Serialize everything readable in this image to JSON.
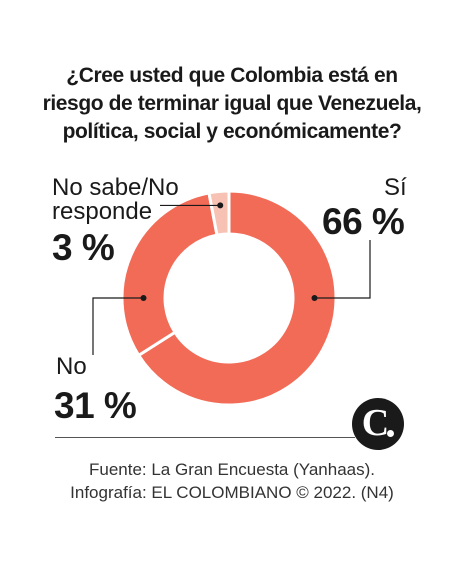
{
  "title_lines": [
    "¿Cree usted que Colombia está en",
    "riesgo de terminar igual que Venezuela,",
    "política, social y económicamente?"
  ],
  "chart_data": {
    "type": "pie",
    "donut": true,
    "categories": [
      "Sí",
      "No",
      "No sabe/No responde"
    ],
    "values": [
      66,
      31,
      3
    ],
    "labels": [
      {
        "name": "Sí",
        "value": "66 %"
      },
      {
        "name": "No",
        "value": "31 %"
      },
      {
        "name_lines": [
          "No sabe/No",
          "responde"
        ],
        "value": "3 %"
      }
    ],
    "colors": [
      "#f26b57",
      "#f26b57",
      "#f7c2b3"
    ]
  },
  "source": {
    "line1": "Fuente: La Gran Encuesta (Yanhaas).",
    "line2": "Infografía: EL COLOMBIANO © 2022. (N4)"
  },
  "logo": {
    "letter": "C",
    "icon": "el-colombiano-logo-icon"
  }
}
